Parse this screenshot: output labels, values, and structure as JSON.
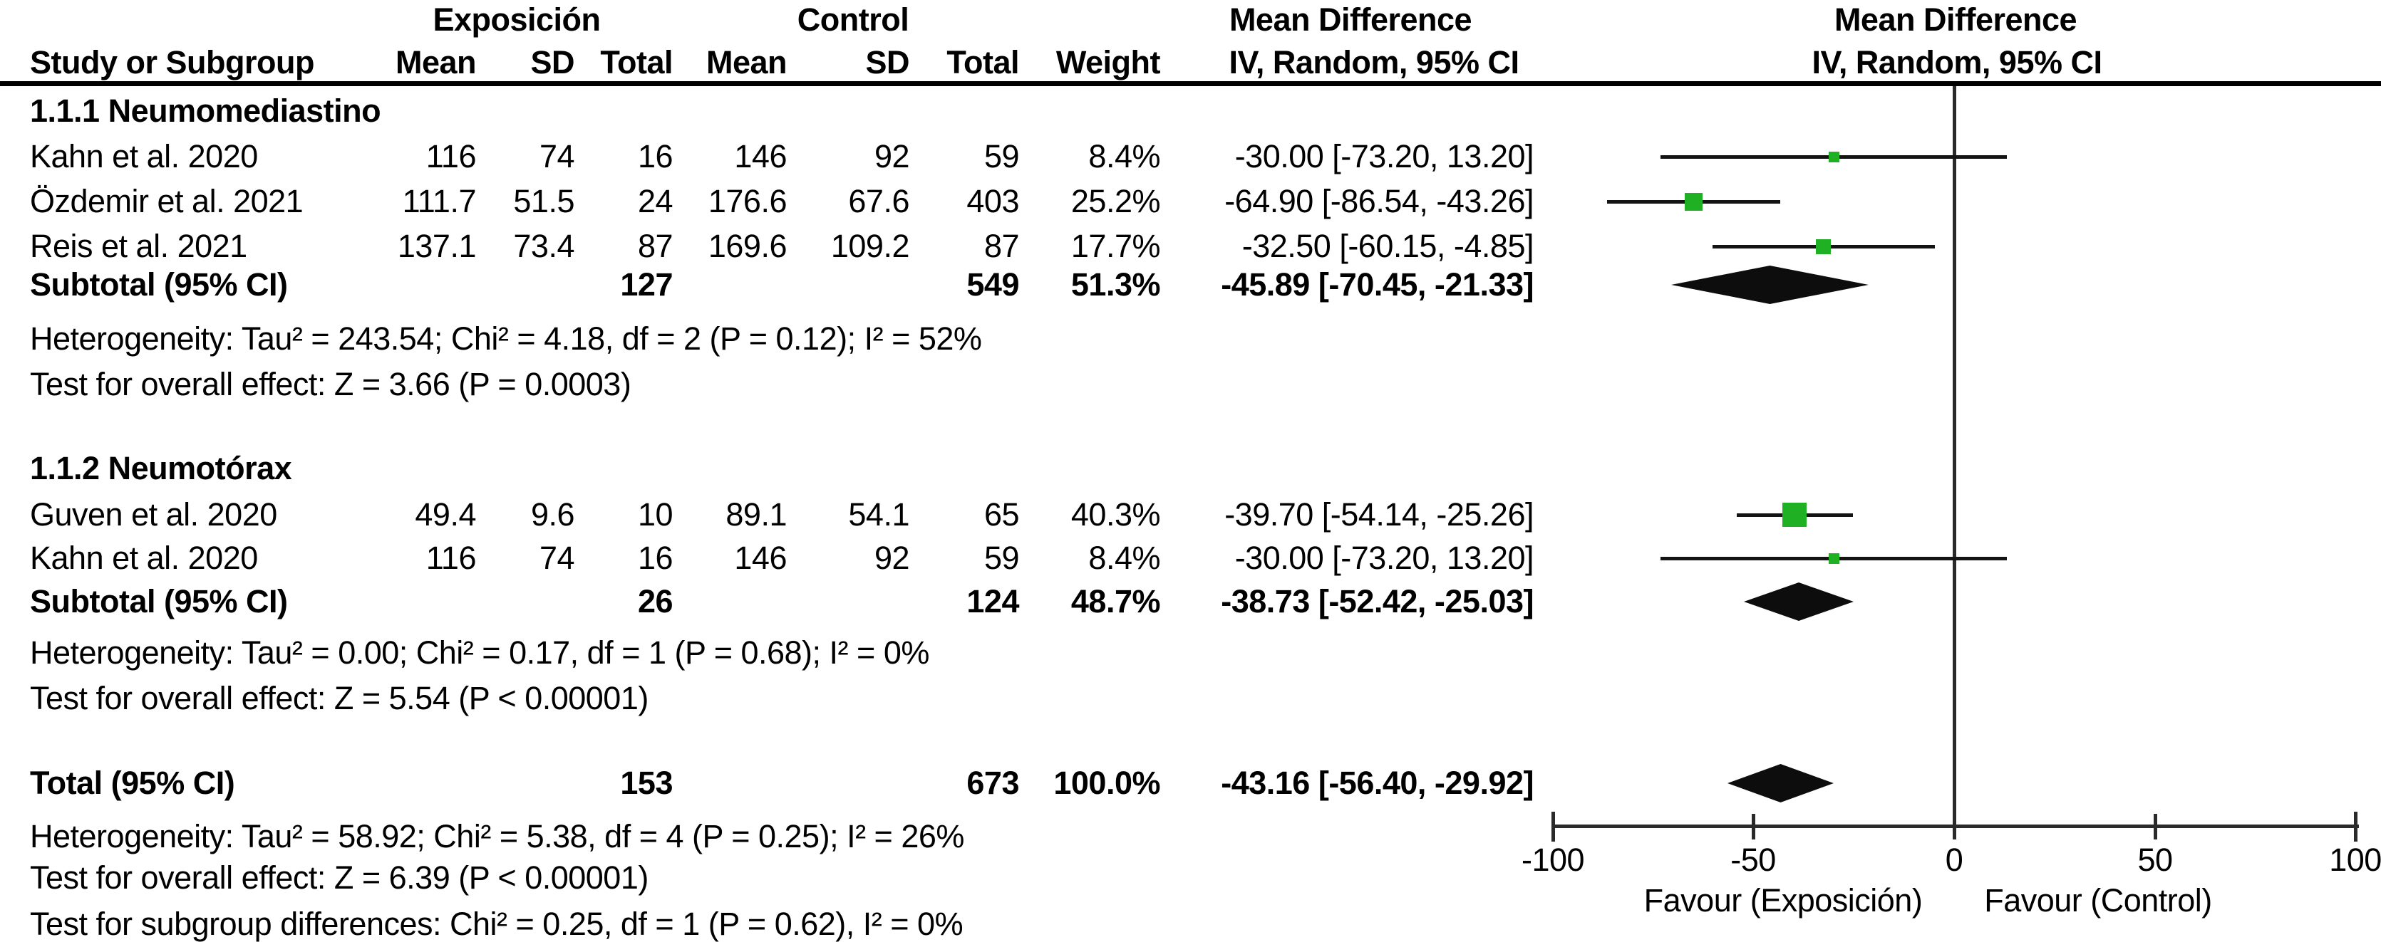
{
  "figure": {
    "headers": {
      "group_exposicion": "Exposición",
      "group_control": "Control",
      "mean_difference_table": "Mean Difference",
      "mean_difference_plot": "Mean Difference",
      "study_or_subgroup": "Study or Subgroup",
      "mean_exp": "Mean",
      "sd_exp": "SD",
      "total_exp": "Total",
      "mean_ctrl": "Mean",
      "sd_ctrl": "SD",
      "total_ctrl": "Total",
      "weight": "Weight",
      "iv_random_table": "IV, Random, 95% CI",
      "iv_random_plot": "IV, Random, 95% CI"
    },
    "colors": {
      "marker_green": "#1fb024",
      "line_black": "#141414",
      "diamond_black": "#0d0d0d"
    }
  },
  "chart_data": {
    "type": "scatter",
    "subtype": "forest-plot",
    "effect_measure": "Mean Difference, IV, Random, 95% CI",
    "xlim": [
      -100,
      100
    ],
    "x_ticks": [
      "-100",
      "-50",
      "0",
      "50",
      "100"
    ],
    "x_tick_values": [
      -100,
      -50,
      0,
      50,
      100
    ],
    "favour_left": "Favour (Exposición)",
    "favour_right": "Favour (Control)",
    "sections": [
      {
        "title": "1.1.1 Neumomediastino",
        "studies": [
          {
            "name": "Kahn et al. 2020",
            "mean_e": "116",
            "sd_e": "74",
            "total_e": "16",
            "mean_c": "146",
            "sd_c": "92",
            "total_c": "59",
            "weight": "8.4%",
            "weight_pct": 8.4,
            "ci_text": "-30.00 [-73.20, 13.20]",
            "md": -30.0,
            "ci_low": -73.2,
            "ci_high": 13.2
          },
          {
            "name": "Özdemir et al. 2021",
            "mean_e": "111.7",
            "sd_e": "51.5",
            "total_e": "24",
            "mean_c": "176.6",
            "sd_c": "67.6",
            "total_c": "403",
            "weight": "25.2%",
            "weight_pct": 25.2,
            "ci_text": "-64.90 [-86.54, -43.26]",
            "md": -64.9,
            "ci_low": -86.54,
            "ci_high": -43.26
          },
          {
            "name": "Reis et al. 2021",
            "mean_e": "137.1",
            "sd_e": "73.4",
            "total_e": "87",
            "mean_c": "169.6",
            "sd_c": "109.2",
            "total_c": "87",
            "weight": "17.7%",
            "weight_pct": 17.7,
            "ci_text": "-32.50 [-60.15, -4.85]",
            "md": -32.5,
            "ci_low": -60.15,
            "ci_high": -4.85
          }
        ],
        "subtotal": {
          "label": "Subtotal (95% CI)",
          "total_e": "127",
          "total_c": "549",
          "weight": "51.3%",
          "ci_text": "-45.89 [-70.45, -21.33]",
          "md": -45.89,
          "ci_low": -70.45,
          "ci_high": -21.33
        },
        "heterogeneity": "Heterogeneity: Tau² = 243.54; Chi² = 4.18, df = 2 (P = 0.12); I² = 52%",
        "overall_effect": "Test for overall effect: Z = 3.66 (P = 0.0003)"
      },
      {
        "title": "1.1.2 Neumotórax",
        "studies": [
          {
            "name": "Guven et al. 2020",
            "mean_e": "49.4",
            "sd_e": "9.6",
            "total_e": "10",
            "mean_c": "89.1",
            "sd_c": "54.1",
            "total_c": "65",
            "weight": "40.3%",
            "weight_pct": 40.3,
            "ci_text": "-39.70 [-54.14, -25.26]",
            "md": -39.7,
            "ci_low": -54.14,
            "ci_high": -25.26
          },
          {
            "name": "Kahn et al. 2020",
            "mean_e": "116",
            "sd_e": "74",
            "total_e": "16",
            "mean_c": "146",
            "sd_c": "92",
            "total_c": "59",
            "weight": "8.4%",
            "weight_pct": 8.4,
            "ci_text": "-30.00 [-73.20, 13.20]",
            "md": -30.0,
            "ci_low": -73.2,
            "ci_high": 13.2
          }
        ],
        "subtotal": {
          "label": "Subtotal (95% CI)",
          "total_e": "26",
          "total_c": "124",
          "weight": "48.7%",
          "ci_text": "-38.73 [-52.42, -25.03]",
          "md": -38.73,
          "ci_low": -52.42,
          "ci_high": -25.03
        },
        "heterogeneity": "Heterogeneity: Tau² = 0.00; Chi² = 0.17, df = 1 (P = 0.68); I² = 0%",
        "overall_effect": "Test for overall effect: Z = 5.54 (P < 0.00001)"
      }
    ],
    "total": {
      "label": "Total (95% CI)",
      "total_e": "153",
      "total_c": "673",
      "weight": "100.0%",
      "ci_text": "-43.16 [-56.40, -29.92]",
      "md": -43.16,
      "ci_low": -56.4,
      "ci_high": -29.92
    },
    "total_heterogeneity": "Heterogeneity: Tau² = 58.92; Chi² = 5.38, df = 4 (P = 0.25); I² = 26%",
    "total_overall_effect": "Test for overall effect: Z = 6.39 (P < 0.00001)",
    "subgroup_difference": "Test for subgroup differences: Chi² = 0.25, df = 1 (P = 0.62), I² = 0%"
  }
}
